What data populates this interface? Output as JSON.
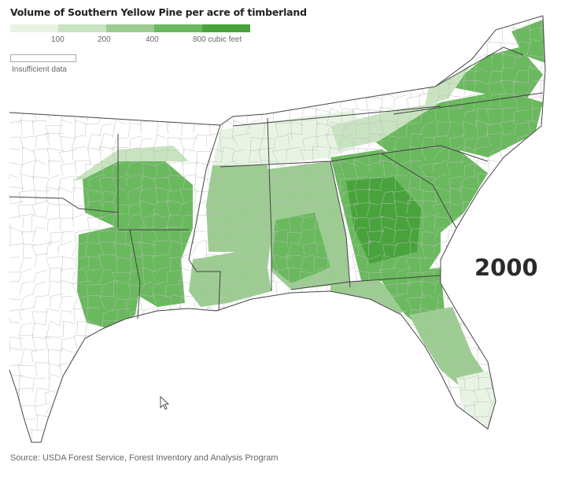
{
  "title": "Volume of Southern Yellow Pine per acre of timberland",
  "legend": {
    "colors": [
      "#e8f3e4",
      "#c8e3c0",
      "#9ccc91",
      "#6ab95e",
      "#48a33c"
    ],
    "ticks": [
      "100",
      "200",
      "400",
      "800 cubic feet"
    ],
    "insufficient_label": "Insufficient data",
    "insufficient_color": "#ffffff"
  },
  "year": "2000",
  "source": "Source: USDA Forest Service, Forest Inventory and Analysis Program",
  "map": {
    "land_color": "#ffffff",
    "county_border_color": "#bdbdbd",
    "state_border_color": "#444444"
  }
}
